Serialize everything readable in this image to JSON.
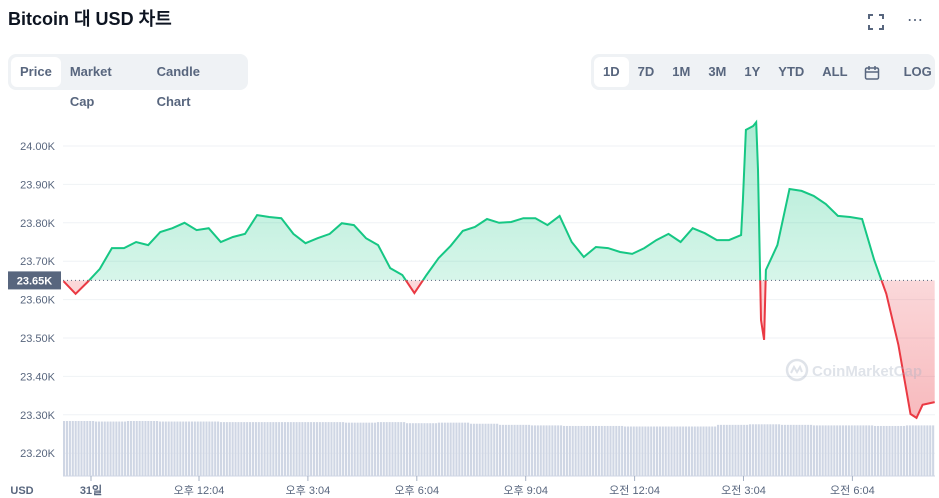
{
  "header": {
    "title": "Bitcoin 대 USD 차트",
    "fullscreen_icon": "fullscreen-icon",
    "more_icon": "more-horizontal-icon"
  },
  "chart_tabs": [
    {
      "label": "Price",
      "active": true
    },
    {
      "label": "Market Cap"
    },
    {
      "label": "Candle Chart"
    }
  ],
  "ranges": [
    {
      "label": "1D",
      "active": true
    },
    {
      "label": "7D"
    },
    {
      "label": "1M"
    },
    {
      "label": "3M"
    },
    {
      "label": "1Y"
    },
    {
      "label": "YTD"
    },
    {
      "label": "ALL"
    }
  ],
  "calendar_icon": "calendar-icon",
  "log_label": "LOG",
  "watermark": "CoinMarketCap",
  "colors": {
    "up": "#16c784",
    "down": "#ea3943",
    "volume": "#cfd6e4"
  },
  "chart_data": {
    "type": "area",
    "ylabel": "USD",
    "ylim": [
      23.15,
      24.1
    ],
    "yticks": [
      "24.00K",
      "23.90K",
      "23.80K",
      "23.70K",
      "23.60K",
      "23.50K",
      "23.40K",
      "23.30K",
      "23.20K"
    ],
    "ytick_values": [
      24.0,
      23.9,
      23.8,
      23.7,
      23.6,
      23.5,
      23.4,
      23.3,
      23.2
    ],
    "xticks": [
      "31일",
      "오후 12:04",
      "오후 3:04",
      "오후 6:04",
      "오후 9:04",
      "오전 12:04",
      "오전 3:04",
      "오전 6:04"
    ],
    "xtick_times": [
      "31 00:00",
      "31 12:04",
      "31 15:04",
      "31 18:04",
      "31 21:04",
      "32 00:04",
      "32 03:04",
      "32 06:04"
    ],
    "reference_price": 23.65,
    "reference_label": "23.65K",
    "grid": true,
    "series": [
      [
        "31 08:20",
        23.648
      ],
      [
        "31 08:40",
        23.615
      ],
      [
        "31 09:00",
        23.646
      ],
      [
        "31 09:20",
        23.68
      ],
      [
        "31 09:40",
        23.734
      ],
      [
        "31 10:00",
        23.734
      ],
      [
        "31 10:20",
        23.75
      ],
      [
        "31 10:40",
        23.742
      ],
      [
        "31 11:00",
        23.776
      ],
      [
        "31 11:20",
        23.786
      ],
      [
        "31 11:40",
        23.8
      ],
      [
        "31 12:00",
        23.781
      ],
      [
        "31 12:20",
        23.786
      ],
      [
        "31 12:40",
        23.75
      ],
      [
        "31 13:00",
        23.763
      ],
      [
        "31 13:20",
        23.771
      ],
      [
        "31 13:40",
        23.82
      ],
      [
        "31 14:00",
        23.815
      ],
      [
        "31 14:20",
        23.812
      ],
      [
        "31 14:40",
        23.771
      ],
      [
        "31 15:00",
        23.747
      ],
      [
        "31 15:20",
        23.76
      ],
      [
        "31 15:40",
        23.771
      ],
      [
        "31 16:00",
        23.799
      ],
      [
        "31 16:20",
        23.794
      ],
      [
        "31 16:40",
        23.76
      ],
      [
        "31 17:00",
        23.742
      ],
      [
        "31 17:20",
        23.682
      ],
      [
        "31 17:40",
        23.664
      ],
      [
        "31 18:00",
        23.617
      ],
      [
        "31 18:20",
        23.664
      ],
      [
        "31 18:40",
        23.708
      ],
      [
        "31 19:00",
        23.74
      ],
      [
        "31 19:20",
        23.779
      ],
      [
        "31 19:40",
        23.789
      ],
      [
        "31 20:00",
        23.81
      ],
      [
        "31 20:20",
        23.8
      ],
      [
        "31 20:40",
        23.802
      ],
      [
        "31 21:00",
        23.812
      ],
      [
        "31 21:20",
        23.812
      ],
      [
        "31 21:40",
        23.794
      ],
      [
        "31 22:00",
        23.818
      ],
      [
        "31 22:20",
        23.75
      ],
      [
        "31 22:40",
        23.711
      ],
      [
        "31 23:00",
        23.737
      ],
      [
        "31 23:20",
        23.734
      ],
      [
        "31 23:40",
        23.724
      ],
      [
        "32 00:00",
        23.719
      ],
      [
        "32 00:20",
        23.734
      ],
      [
        "32 00:40",
        23.755
      ],
      [
        "32 01:00",
        23.771
      ],
      [
        "32 01:20",
        23.75
      ],
      [
        "32 01:40",
        23.786
      ],
      [
        "32 02:00",
        23.773
      ],
      [
        "32 02:20",
        23.755
      ],
      [
        "32 02:40",
        23.755
      ],
      [
        "32 03:00",
        23.768
      ],
      [
        "32 03:03",
        23.859
      ],
      [
        "32 03:08",
        24.042
      ],
      [
        "32 03:20",
        24.052
      ],
      [
        "32 03:25",
        24.062
      ],
      [
        "32 03:28",
        23.938
      ],
      [
        "32 03:33",
        23.547
      ],
      [
        "32 03:38",
        23.495
      ],
      [
        "32 03:41",
        23.677
      ],
      [
        "32 04:00",
        23.742
      ],
      [
        "32 04:20",
        23.888
      ],
      [
        "32 04:40",
        23.883
      ],
      [
        "32 05:00",
        23.87
      ],
      [
        "32 05:20",
        23.849
      ],
      [
        "32 05:40",
        23.818
      ],
      [
        "32 06:00",
        23.815
      ],
      [
        "32 06:20",
        23.81
      ],
      [
        "32 06:40",
        23.703
      ],
      [
        "32 07:00",
        23.615
      ],
      [
        "32 07:20",
        23.482
      ],
      [
        "32 07:40",
        23.302
      ],
      [
        "32 07:50",
        23.292
      ],
      [
        "32 08:00",
        23.326
      ],
      [
        "32 08:20",
        23.333
      ]
    ],
    "volume_relative": [
      1.0,
      0.99,
      1.0,
      0.99,
      0.99,
      0.98,
      0.98,
      0.98,
      0.98,
      0.97,
      0.98,
      0.96,
      0.97,
      0.95,
      0.93,
      0.92,
      0.91,
      0.91,
      0.9,
      0.9,
      0.9,
      0.93,
      0.94,
      0.93,
      0.92,
      0.92,
      0.91,
      0.92
    ]
  }
}
